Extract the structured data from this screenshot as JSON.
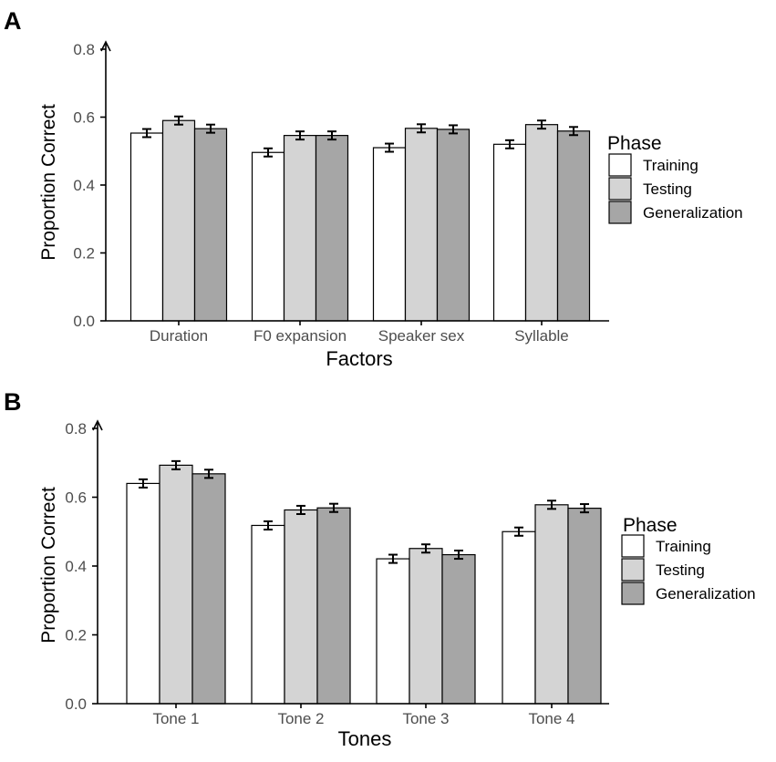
{
  "chart_data": [
    {
      "panel": "A",
      "type": "bar",
      "title": "",
      "xlabel": "Factors",
      "ylabel": "Proportion Correct",
      "ylim": [
        0,
        0.8
      ],
      "yticks": [
        "0.0",
        "0.2",
        "0.4",
        "0.6",
        "0.8"
      ],
      "categories": [
        "Duration",
        "F0 expansion",
        "Speaker sex",
        "Syllable"
      ],
      "legend": {
        "title": "Phase",
        "placement": "right"
      },
      "series": [
        {
          "name": "Training",
          "color": "#ffffff",
          "values": [
            0.553,
            0.496,
            0.51,
            0.52
          ],
          "errors": [
            0.012,
            0.012,
            0.012,
            0.012
          ]
        },
        {
          "name": "Testing",
          "color": "#d4d4d4",
          "values": [
            0.59,
            0.546,
            0.567,
            0.578
          ],
          "errors": [
            0.012,
            0.012,
            0.012,
            0.012
          ]
        },
        {
          "name": "Generalization",
          "color": "#a6a6a6",
          "values": [
            0.566,
            0.546,
            0.564,
            0.559
          ],
          "errors": [
            0.012,
            0.012,
            0.012,
            0.012
          ]
        }
      ]
    },
    {
      "panel": "B",
      "type": "bar",
      "title": "",
      "xlabel": "Tones",
      "ylabel": "Proportion Correct",
      "ylim": [
        0,
        0.8
      ],
      "yticks": [
        "0.0",
        "0.2",
        "0.4",
        "0.6",
        "0.8"
      ],
      "categories": [
        "Tone 1",
        "Tone 2",
        "Tone 3",
        "Tone 4"
      ],
      "legend": {
        "title": "Phase",
        "placement": "right"
      },
      "series": [
        {
          "name": "Training",
          "color": "#ffffff",
          "values": [
            0.64,
            0.518,
            0.421,
            0.5
          ],
          "errors": [
            0.012,
            0.012,
            0.012,
            0.012
          ]
        },
        {
          "name": "Testing",
          "color": "#d4d4d4",
          "values": [
            0.693,
            0.563,
            0.451,
            0.578
          ],
          "errors": [
            0.012,
            0.012,
            0.012,
            0.012
          ]
        },
        {
          "name": "Generalization",
          "color": "#a6a6a6",
          "values": [
            0.668,
            0.569,
            0.433,
            0.568
          ],
          "errors": [
            0.012,
            0.012,
            0.012,
            0.012
          ]
        }
      ]
    }
  ]
}
